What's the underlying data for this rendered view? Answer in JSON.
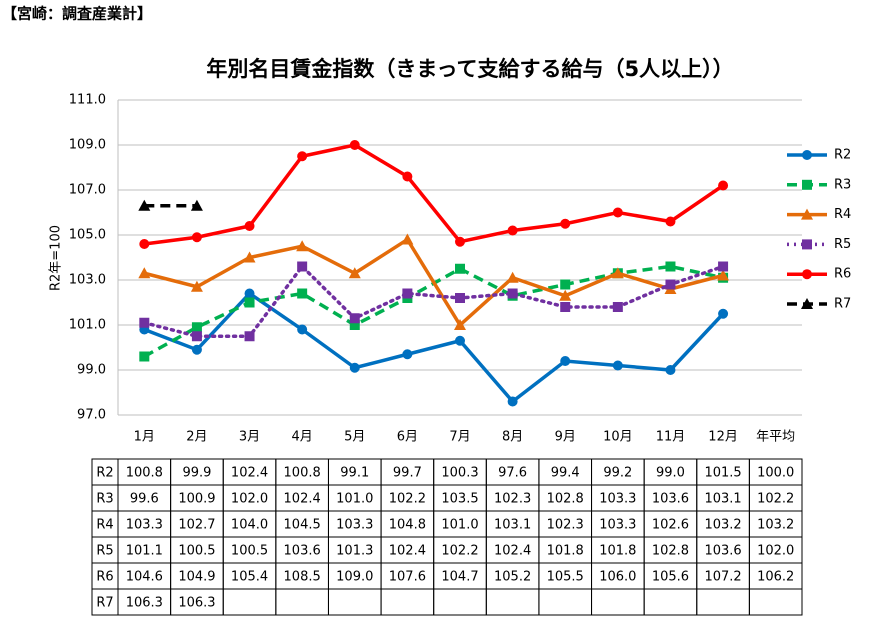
{
  "header": "【宮崎：調査産業計】",
  "chart_data": {
    "type": "line",
    "title": "年別名目賃金指数（きまって支給する給与（5人以上））",
    "y_label": "R2年=100",
    "categories": [
      "1月",
      "2月",
      "3月",
      "4月",
      "5月",
      "6月",
      "7月",
      "8月",
      "9月",
      "10月",
      "11月",
      "12月"
    ],
    "average_category": "年平均",
    "ylim": [
      97,
      111
    ],
    "yticks": [
      {
        "value": 97,
        "label": "97.0"
      },
      {
        "value": 99,
        "label": "99.0"
      },
      {
        "value": 101,
        "label": "101.0"
      },
      {
        "value": 103,
        "label": "103.0"
      },
      {
        "value": 105,
        "label": "105.0"
      },
      {
        "value": 107,
        "label": "107.0"
      },
      {
        "value": 109,
        "label": "109.0"
      },
      {
        "value": 111,
        "label": "111.0"
      }
    ],
    "grid": true,
    "legend": "right",
    "series": [
      {
        "name": "R2",
        "color": "#0070c0",
        "marker": "circle",
        "dash": "solid",
        "values": [
          100.8,
          99.9,
          102.4,
          100.8,
          99.1,
          99.7,
          100.3,
          97.6,
          99.4,
          99.2,
          99.0,
          101.5
        ],
        "value_labels": [
          "100.8",
          "99.9",
          "102.4",
          "100.8",
          "99.1",
          "99.7",
          "100.3",
          "97.6",
          "99.4",
          "99.2",
          "99.0",
          "101.5"
        ],
        "average": 100.0,
        "average_label": "100.0"
      },
      {
        "name": "R3",
        "color": "#00b050",
        "marker": "square",
        "dash": "dashed",
        "values": [
          99.6,
          100.9,
          102.0,
          102.4,
          101.0,
          102.2,
          103.5,
          102.3,
          102.8,
          103.3,
          103.6,
          103.1
        ],
        "value_labels": [
          "99.6",
          "100.9",
          "102.0",
          "102.4",
          "101.0",
          "102.2",
          "103.5",
          "102.3",
          "102.8",
          "103.3",
          "103.6",
          "103.1"
        ],
        "average": 102.2,
        "average_label": "102.2"
      },
      {
        "name": "R4",
        "color": "#e46c0a",
        "marker": "triangle",
        "dash": "solid",
        "values": [
          103.3,
          102.7,
          104.0,
          104.5,
          103.3,
          104.8,
          101.0,
          103.1,
          102.3,
          103.3,
          102.6,
          103.2
        ],
        "value_labels": [
          "103.3",
          "102.7",
          "104.0",
          "104.5",
          "103.3",
          "104.8",
          "101.0",
          "103.1",
          "102.3",
          "103.3",
          "102.6",
          "103.2"
        ],
        "average": 103.2,
        "average_label": "103.2"
      },
      {
        "name": "R5",
        "color": "#7030a0",
        "marker": "square",
        "dash": "dotted",
        "values": [
          101.1,
          100.5,
          100.5,
          103.6,
          101.3,
          102.4,
          102.2,
          102.4,
          101.8,
          101.8,
          102.8,
          103.6
        ],
        "value_labels": [
          "101.1",
          "100.5",
          "100.5",
          "103.6",
          "101.3",
          "102.4",
          "102.2",
          "102.4",
          "101.8",
          "101.8",
          "102.8",
          "103.6"
        ],
        "average": 102.0,
        "average_label": "102.0"
      },
      {
        "name": "R6",
        "color": "#ff0000",
        "marker": "circle",
        "dash": "solid",
        "values": [
          104.6,
          104.9,
          105.4,
          108.5,
          109.0,
          107.6,
          104.7,
          105.2,
          105.5,
          106.0,
          105.6,
          107.2
        ],
        "value_labels": [
          "104.6",
          "104.9",
          "105.4",
          "108.5",
          "109.0",
          "107.6",
          "104.7",
          "105.2",
          "105.5",
          "106.0",
          "105.6",
          "107.2"
        ],
        "average": 106.2,
        "average_label": "106.2"
      },
      {
        "name": "R7",
        "color": "#000000",
        "marker": "triangle",
        "dash": "dashed",
        "values": [
          106.3,
          106.3,
          null,
          null,
          null,
          null,
          null,
          null,
          null,
          null,
          null,
          null
        ],
        "value_labels": [
          "106.3",
          "106.3",
          null,
          null,
          null,
          null,
          null,
          null,
          null,
          null,
          null,
          null
        ],
        "average": null,
        "average_label": null
      }
    ]
  }
}
